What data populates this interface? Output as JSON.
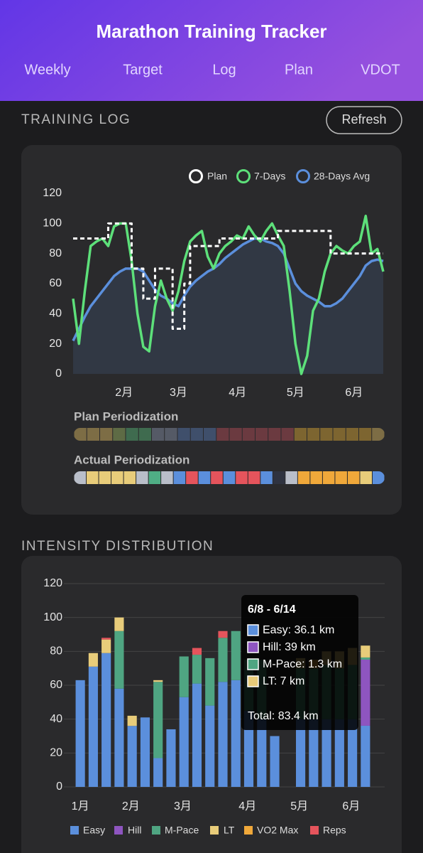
{
  "header": {
    "title": "Marathon Training Tracker",
    "tabs": [
      "Weekly",
      "Target",
      "Log",
      "Plan",
      "VDOT"
    ]
  },
  "training_log": {
    "heading": "TRAINING LOG",
    "refresh": "Refresh"
  },
  "periodization": {
    "plan": {
      "label": "Plan Periodization",
      "colors": [
        "#7d6d45",
        "#7d6d45",
        "#7d6d45",
        "#5e6b45",
        "#3f6b4f",
        "#3f6b4f",
        "#555a66",
        "#555a66",
        "#3f4f6b",
        "#3f4f6b",
        "#3f4f6b",
        "#6b3a40",
        "#6b3a40",
        "#6b3a40",
        "#6b3a40",
        "#6b3a40",
        "#6b3a40",
        "#7d6530",
        "#7d6530",
        "#7d6530",
        "#7d6530",
        "#7d6530",
        "#7d6530",
        "#7d6d45"
      ]
    },
    "actual": {
      "label": "Actual Periodization",
      "colors": [
        "#b9bec9",
        "#e8cc7a",
        "#e8cc7a",
        "#e8cc7a",
        "#e8cc7a",
        "#b9bec9",
        "#4fae85",
        "#b9bec9",
        "#5b8fdc",
        "#e5545c",
        "#5b8fdc",
        "#e5545c",
        "#5b8fdc",
        "#e5545c",
        "#e5545c",
        "#5b8fdc",
        "#2f3340",
        "#b9bec9",
        "#f0a83a",
        "#f0a83a",
        "#f0a83a",
        "#f0a83a",
        "#f0a83a",
        "#e8cc7a",
        "#5b8fdc"
      ]
    }
  },
  "intensity": {
    "heading": "INTENSITY DISTRIBUTION"
  },
  "chart_data": [
    {
      "type": "line",
      "xlim": [
        0,
        53
      ],
      "xticks": [
        {
          "value": 8.7,
          "label": "2月"
        },
        {
          "value": 18,
          "label": "3月"
        },
        {
          "value": 28.1,
          "label": "4月"
        },
        {
          "value": 38,
          "label": "5月"
        },
        {
          "value": 48,
          "label": "6月"
        }
      ],
      "ylim": [
        0,
        120
      ],
      "yticks": [
        0,
        20,
        40,
        60,
        80,
        100,
        120
      ],
      "grid": false,
      "series": [
        {
          "name": "Plan",
          "color": "#ffffff",
          "dash": true,
          "step": true,
          "values": [
            90,
            90,
            90,
            90,
            90,
            90,
            100,
            100,
            100,
            100,
            70,
            70,
            50,
            50,
            70,
            70,
            70,
            30,
            30,
            60,
            85,
            85,
            85,
            85,
            85,
            90,
            90,
            90,
            90,
            90,
            90,
            90,
            90,
            90,
            90,
            95,
            95,
            95,
            95,
            95,
            95,
            95,
            95,
            95,
            80,
            80,
            80,
            80,
            80,
            80,
            80,
            80,
            80,
            80
          ]
        },
        {
          "name": "7-Days",
          "color": "#5de07a",
          "values": [
            50,
            20,
            55,
            85,
            88,
            90,
            85,
            98,
            100,
            100,
            75,
            40,
            18,
            15,
            45,
            62,
            50,
            42,
            55,
            75,
            88,
            92,
            95,
            78,
            70,
            80,
            85,
            88,
            92,
            90,
            98,
            92,
            88,
            95,
            100,
            92,
            85,
            55,
            20,
            0,
            12,
            42,
            50,
            68,
            80,
            85,
            82,
            80,
            85,
            88,
            105,
            80,
            83,
            68
          ]
        },
        {
          "name": "28-Days Avg",
          "color": "#5b8fdc",
          "fill": true,
          "values": [
            22,
            30,
            38,
            45,
            50,
            55,
            60,
            65,
            68,
            70,
            70,
            70,
            68,
            62,
            56,
            52,
            50,
            47,
            45,
            52,
            58,
            62,
            65,
            68,
            70,
            73,
            77,
            80,
            83,
            86,
            88,
            90,
            90,
            88,
            87,
            85,
            80,
            70,
            60,
            55,
            52,
            50,
            48,
            45,
            45,
            47,
            50,
            55,
            60,
            65,
            72,
            75,
            76,
            75
          ]
        }
      ]
    },
    {
      "type": "stacked-bar",
      "categories": [
        null,
        null,
        null,
        null,
        null,
        null,
        null,
        null,
        null,
        null,
        null,
        null,
        null,
        null,
        null,
        null,
        null,
        null,
        null,
        null,
        null,
        null,
        null
      ],
      "xlim": [
        -0.5,
        22.5
      ],
      "xticks": [
        {
          "value": 0,
          "label": "1月"
        },
        {
          "value": 3.9,
          "label": "2月"
        },
        {
          "value": 7.9,
          "label": "3月"
        },
        {
          "value": 12.9,
          "label": "4月"
        },
        {
          "value": 16.9,
          "label": "5月"
        },
        {
          "value": 20.9,
          "label": "6月"
        }
      ],
      "ylim": [
        0,
        120
      ],
      "yticks": [
        0,
        20,
        40,
        60,
        80,
        100,
        120
      ],
      "grid": true,
      "series": [
        {
          "name": "Easy",
          "color": "#5b8fdc",
          "values": [
            63,
            71,
            79,
            58,
            36,
            41,
            17,
            34,
            53,
            61,
            48,
            62,
            63,
            45,
            40,
            30,
            0,
            40,
            40,
            40,
            40,
            40,
            36.1
          ]
        },
        {
          "name": "Hill",
          "color": "#8e55c0",
          "values": [
            0,
            0,
            0,
            0,
            0,
            0,
            0,
            0,
            0,
            0,
            0,
            0,
            0,
            0,
            0,
            0,
            0,
            0,
            0,
            0,
            0,
            0,
            39
          ]
        },
        {
          "name": "M-Pace",
          "color": "#4fa582",
          "values": [
            0,
            0,
            0,
            34,
            0,
            0,
            45,
            0,
            24,
            17,
            28,
            26,
            29,
            30,
            35,
            0,
            0,
            30,
            30,
            32,
            30,
            32,
            1.3
          ]
        },
        {
          "name": "LT",
          "color": "#e8cc7a",
          "values": [
            0,
            8,
            8,
            8,
            6,
            0,
            1,
            0,
            0,
            0,
            0,
            0,
            0,
            0,
            0,
            0,
            0,
            6,
            0,
            8,
            10,
            10,
            7
          ]
        },
        {
          "name": "VO2 Max",
          "color": "#f0a83a",
          "values": [
            0,
            0,
            0,
            0,
            0,
            0,
            0,
            0,
            0,
            0,
            0,
            0,
            0,
            0,
            0,
            0,
            0,
            0,
            5,
            0,
            0,
            0,
            0
          ]
        },
        {
          "name": "Reps",
          "color": "#e5545c",
          "values": [
            0,
            0,
            1,
            0,
            0,
            0,
            0,
            0,
            0,
            4,
            0,
            4,
            0,
            0,
            0,
            0,
            0,
            0,
            0,
            0,
            0,
            0,
            0
          ]
        }
      ],
      "tooltip": {
        "title": "6/8 - 6/14",
        "items": [
          "Easy: 36.1 km",
          "Hill: 39 km",
          "M-Pace: 1.3 km",
          "LT: 7 km"
        ],
        "total": "Total: 83.4 km"
      }
    }
  ]
}
